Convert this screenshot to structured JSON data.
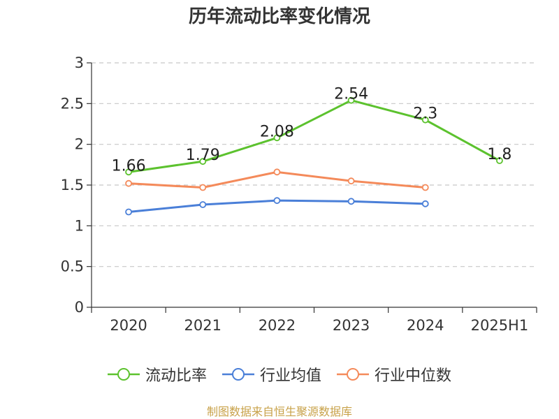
{
  "colors": {
    "current_ratio": "#5cc22e",
    "industry_mean": "#4a7fd8",
    "industry_median": "#f48a5a",
    "axis": "#333333",
    "grid": "#c8c8c8",
    "source": "#c8a24a"
  },
  "source_note": "制图数据来自恒生聚源数据库",
  "chart_data": {
    "type": "line",
    "title": "历年流动比率变化情况",
    "categories": [
      "2020",
      "2021",
      "2022",
      "2023",
      "2024",
      "2025H1"
    ],
    "ylim": [
      0,
      3
    ],
    "yticks": [
      "0",
      "0.5",
      "1",
      "1.5",
      "2",
      "2.5",
      "3"
    ],
    "grid": true,
    "legend_position": "bottom",
    "series": [
      {
        "name": "流动比率",
        "values": [
          1.66,
          1.79,
          2.08,
          2.54,
          2.3,
          1.8
        ],
        "labels": [
          "1.66",
          "1.79",
          "2.08",
          "2.54",
          "2.3",
          "1.8"
        ]
      },
      {
        "name": "行业均值",
        "values": [
          1.17,
          1.26,
          1.31,
          1.3,
          1.27,
          null
        ]
      },
      {
        "name": "行业中位数",
        "values": [
          1.52,
          1.47,
          1.66,
          1.55,
          1.47,
          null
        ]
      }
    ]
  }
}
